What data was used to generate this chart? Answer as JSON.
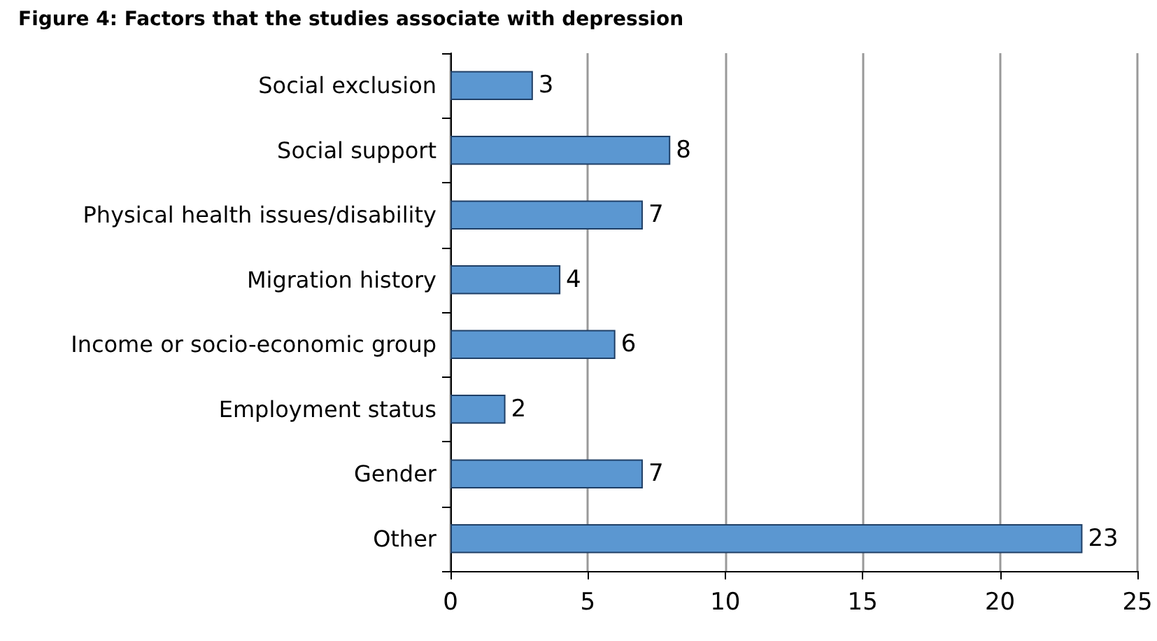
{
  "chart_data": {
    "type": "bar",
    "orientation": "horizontal",
    "title": "Figure 4: Factors that the studies associate with depression",
    "categories": [
      "Social exclusion",
      "Social support",
      "Physical health issues/disability",
      "Migration history",
      "Income or socio-economic group",
      "Employment status",
      "Gender",
      "Other"
    ],
    "values": [
      3,
      8,
      7,
      4,
      6,
      2,
      7,
      23
    ],
    "color": "#5b97d1",
    "data_labels": true,
    "xlim": [
      0,
      25
    ],
    "xticks": [
      0,
      5,
      10,
      15,
      20,
      25
    ],
    "grid": "x"
  }
}
